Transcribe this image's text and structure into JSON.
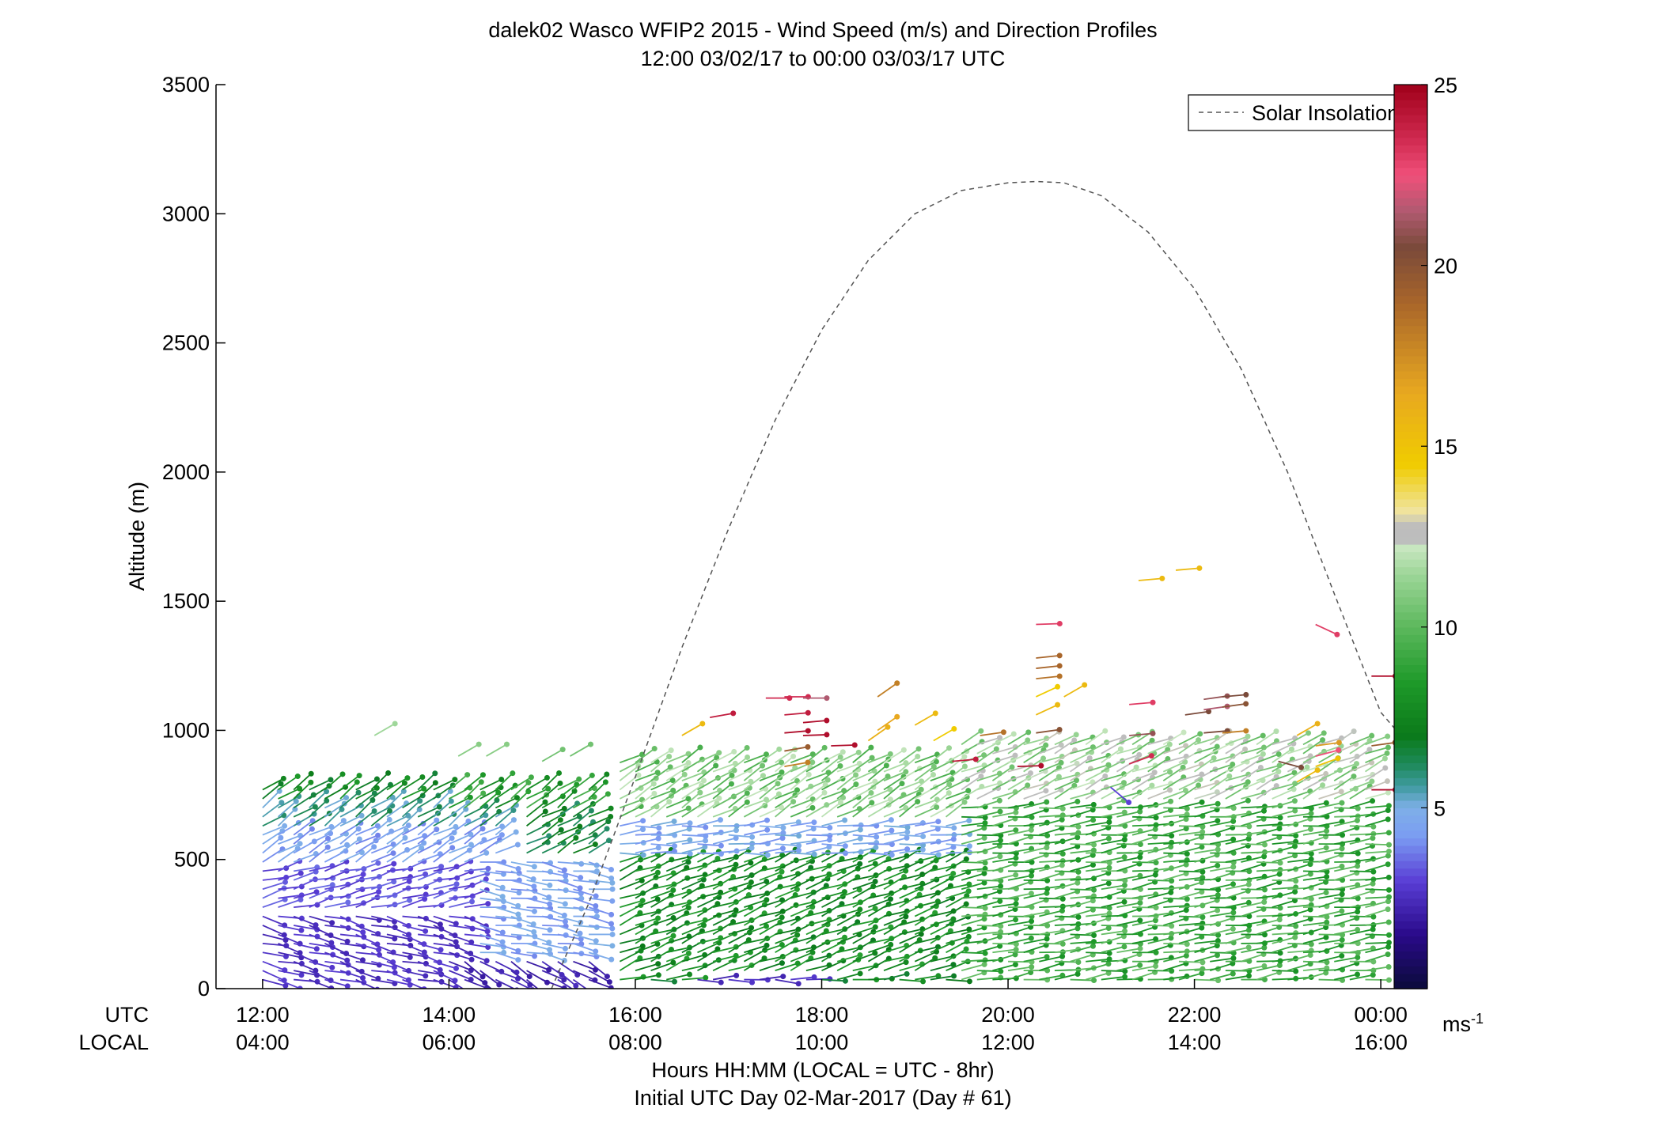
{
  "chart_data": {
    "type": "scatter",
    "title": "dalek02 Wasco WFIP2 2015 - Wind Speed (m/s) and Direction Profiles",
    "subtitle": "12:00 03/02/17 to 00:00 03/03/17  UTC",
    "ylabel": "Altitude (m)",
    "xlabel": "Hours HH:MM  (LOCAL = UTC - 8hr)",
    "xlabel2": "Initial UTC Day 02-Mar-2017 (Day # 61)",
    "row_label_utc": "UTC",
    "row_label_local": "LOCAL",
    "xlim": [
      -0.5,
      12.5
    ],
    "ylim": [
      0,
      3500
    ],
    "xticks_utc": [
      {
        "x": 0,
        "label": "12:00"
      },
      {
        "x": 2,
        "label": "14:00"
      },
      {
        "x": 4,
        "label": "16:00"
      },
      {
        "x": 6,
        "label": "18:00"
      },
      {
        "x": 8,
        "label": "20:00"
      },
      {
        "x": 10,
        "label": "22:00"
      },
      {
        "x": 12,
        "label": "00:00"
      }
    ],
    "xticks_local": [
      "04:00",
      "06:00",
      "08:00",
      "10:00",
      "12:00",
      "14:00",
      "16:00"
    ],
    "yticks": [
      {
        "y": 0,
        "label": "0"
      },
      {
        "y": 500,
        "label": "500"
      },
      {
        "y": 1000,
        "label": "1000"
      },
      {
        "y": 1500,
        "label": "1500"
      },
      {
        "y": 2000,
        "label": "2000"
      },
      {
        "y": 2500,
        "label": "2500"
      },
      {
        "y": 3000,
        "label": "3000"
      },
      {
        "y": 3500,
        "label": "3500"
      }
    ],
    "legend": {
      "entry": "Solar Insolation",
      "position": "top-right",
      "style": "dashed",
      "color": "#555555"
    },
    "solar_insolation": {
      "x": [
        3.1,
        3.5,
        4.0,
        4.5,
        5.0,
        5.5,
        6.0,
        6.5,
        7.0,
        7.5,
        8.0,
        8.3,
        8.6,
        9.0,
        9.5,
        10.0,
        10.5,
        11.0,
        11.5,
        12.0,
        12.5
      ],
      "y": [
        0,
        330,
        820,
        1320,
        1780,
        2200,
        2550,
        2820,
        3000,
        3090,
        3120,
        3125,
        3120,
        3070,
        2930,
        2710,
        2400,
        2000,
        1530,
        1070,
        860
      ]
    },
    "colorbar": {
      "min": 0,
      "max": 25,
      "ticks": [
        5,
        10,
        15,
        20,
        25
      ],
      "unit_label": "ms",
      "unit_exponent": "-1",
      "stops": [
        {
          "v": 0,
          "c": "#0b0b3a"
        },
        {
          "v": 1.5,
          "c": "#2a0a8a"
        },
        {
          "v": 3,
          "c": "#5a3fd6"
        },
        {
          "v": 4.2,
          "c": "#7b9cf2"
        },
        {
          "v": 5,
          "c": "#7fb0e8"
        },
        {
          "v": 5.6,
          "c": "#3f9aa0"
        },
        {
          "v": 6.2,
          "c": "#1e8a5a"
        },
        {
          "v": 7,
          "c": "#0b7a1a"
        },
        {
          "v": 8.5,
          "c": "#1f9a2a"
        },
        {
          "v": 10,
          "c": "#5cb85c"
        },
        {
          "v": 11.5,
          "c": "#9fd79a"
        },
        {
          "v": 12.2,
          "c": "#c8e6c0"
        },
        {
          "v": 12.4,
          "c": "#bdbdbd"
        },
        {
          "v": 12.8,
          "c": "#bdbdbd"
        },
        {
          "v": 13.2,
          "c": "#f0e4a0"
        },
        {
          "v": 14.5,
          "c": "#f0cc00"
        },
        {
          "v": 16.5,
          "c": "#e8a820"
        },
        {
          "v": 19,
          "c": "#a8652a"
        },
        {
          "v": 20.5,
          "c": "#7a4a3a"
        },
        {
          "v": 21.5,
          "c": "#b05a70"
        },
        {
          "v": 22.5,
          "c": "#f0507a"
        },
        {
          "v": 23.5,
          "c": "#d02a50"
        },
        {
          "v": 25,
          "c": "#a0001a"
        }
      ]
    },
    "regimes": [
      {
        "x0": 0,
        "x1": 2.6,
        "h0": 0,
        "h1": 300,
        "speed": 2.6,
        "dir": 285
      },
      {
        "x0": 0,
        "x1": 2.6,
        "h0": 300,
        "h1": 470,
        "speed": 3.2,
        "dir": 255
      },
      {
        "x0": 0,
        "x1": 2.6,
        "h0": 470,
        "h1": 600,
        "speed": 4.4,
        "dir": 240
      },
      {
        "x0": 0,
        "x1": 2.6,
        "h0": 600,
        "h1": 720,
        "speed": 5.8,
        "dir": 235
      },
      {
        "x0": 0,
        "x1": 2.6,
        "h0": 720,
        "h1": 800,
        "speed": 7.5,
        "dir": 235
      },
      {
        "x0": 2.0,
        "x1": 3.6,
        "h0": 0,
        "h1": 120,
        "speed": 2.2,
        "dir": 300
      },
      {
        "x0": 2.3,
        "x1": 3.6,
        "h0": 120,
        "h1": 500,
        "speed": 4.5,
        "dir": 280
      },
      {
        "x0": 2.7,
        "x1": 3.6,
        "h0": 500,
        "h1": 700,
        "speed": 6.8,
        "dir": 240
      },
      {
        "x0": 2.0,
        "x1": 3.6,
        "h0": 700,
        "h1": 800,
        "speed": 8.5,
        "dir": 235
      },
      {
        "x0": 3.7,
        "x1": 7.4,
        "h0": 0,
        "h1": 60,
        "speed": 7.5,
        "dir": 265
      },
      {
        "x0": 4.6,
        "x1": 6.0,
        "h0": 20,
        "h1": 80,
        "speed": 2.5,
        "dir": 270
      },
      {
        "x0": 3.7,
        "x1": 7.4,
        "h0": 60,
        "h1": 520,
        "speed": 7.8,
        "dir": 248
      },
      {
        "x0": 3.7,
        "x1": 7.4,
        "h0": 520,
        "h1": 660,
        "speed": 4.6,
        "dir": 265
      },
      {
        "x0": 3.7,
        "x1": 7.4,
        "h0": 660,
        "h1": 900,
        "speed": 10.8,
        "dir": 240
      },
      {
        "x0": 7.5,
        "x1": 12.0,
        "h0": 0,
        "h1": 720,
        "speed": 9.2,
        "dir": 262
      },
      {
        "x0": 7.5,
        "x1": 12.0,
        "h0": 720,
        "h1": 960,
        "speed": 11.5,
        "dir": 245
      }
    ],
    "upper_points": [
      {
        "x": 1.2,
        "y": 980,
        "speed": 11.5,
        "dir": 240
      },
      {
        "x": 2.1,
        "y": 900,
        "speed": 11.0,
        "dir": 240
      },
      {
        "x": 2.4,
        "y": 900,
        "speed": 11.0,
        "dir": 240
      },
      {
        "x": 3.0,
        "y": 880,
        "speed": 10.5,
        "dir": 240
      },
      {
        "x": 3.3,
        "y": 900,
        "speed": 10.5,
        "dir": 240
      },
      {
        "x": 4.5,
        "y": 980,
        "speed": 15.5,
        "dir": 240
      },
      {
        "x": 4.8,
        "y": 1050,
        "speed": 24.0,
        "dir": 260
      },
      {
        "x": 5.4,
        "y": 1125,
        "speed": 23.5,
        "dir": 270
      },
      {
        "x": 5.6,
        "y": 1130,
        "speed": 23.5,
        "dir": 270
      },
      {
        "x": 5.8,
        "y": 1125,
        "speed": 21.5,
        "dir": 270
      },
      {
        "x": 5.6,
        "y": 1060,
        "speed": 24.0,
        "dir": 265
      },
      {
        "x": 5.8,
        "y": 1030,
        "speed": 24.5,
        "dir": 265
      },
      {
        "x": 5.6,
        "y": 990,
        "speed": 24.5,
        "dir": 265
      },
      {
        "x": 5.8,
        "y": 980,
        "speed": 24.5,
        "dir": 268
      },
      {
        "x": 5.6,
        "y": 920,
        "speed": 19.5,
        "dir": 260
      },
      {
        "x": 5.6,
        "y": 860,
        "speed": 18.0,
        "dir": 260
      },
      {
        "x": 6.1,
        "y": 940,
        "speed": 24.5,
        "dir": 268
      },
      {
        "x": 6.5,
        "y": 960,
        "speed": 16.0,
        "dir": 235
      },
      {
        "x": 6.6,
        "y": 1000,
        "speed": 16.5,
        "dir": 235
      },
      {
        "x": 6.6,
        "y": 1130,
        "speed": 18.0,
        "dir": 235
      },
      {
        "x": 7.0,
        "y": 1020,
        "speed": 15.5,
        "dir": 240
      },
      {
        "x": 7.2,
        "y": 960,
        "speed": 14.5,
        "dir": 240
      },
      {
        "x": 7.4,
        "y": 880,
        "speed": 24.0,
        "dir": 265
      },
      {
        "x": 7.7,
        "y": 980,
        "speed": 18.5,
        "dir": 262
      },
      {
        "x": 8.1,
        "y": 860,
        "speed": 24.5,
        "dir": 268
      },
      {
        "x": 8.3,
        "y": 1410,
        "speed": 23.0,
        "dir": 268
      },
      {
        "x": 8.3,
        "y": 1280,
        "speed": 19.0,
        "dir": 264
      },
      {
        "x": 8.3,
        "y": 1240,
        "speed": 19.0,
        "dir": 264
      },
      {
        "x": 8.3,
        "y": 1200,
        "speed": 18.5,
        "dir": 264
      },
      {
        "x": 8.3,
        "y": 1130,
        "speed": 14.5,
        "dir": 245
      },
      {
        "x": 8.3,
        "y": 1060,
        "speed": 15.5,
        "dir": 245
      },
      {
        "x": 8.3,
        "y": 990,
        "speed": 20.0,
        "dir": 262
      },
      {
        "x": 8.6,
        "y": 1130,
        "speed": 15.5,
        "dir": 240
      },
      {
        "x": 9.1,
        "y": 780,
        "speed": 3.0,
        "dir": 310
      },
      {
        "x": 9.3,
        "y": 1100,
        "speed": 23.0,
        "dir": 265
      },
      {
        "x": 9.3,
        "y": 980,
        "speed": 21.0,
        "dir": 265
      },
      {
        "x": 9.3,
        "y": 870,
        "speed": 23.5,
        "dir": 250
      },
      {
        "x": 9.4,
        "y": 1580,
        "speed": 15.5,
        "dir": 265
      },
      {
        "x": 9.8,
        "y": 1620,
        "speed": 15.5,
        "dir": 265
      },
      {
        "x": 9.9,
        "y": 1060,
        "speed": 20.5,
        "dir": 262
      },
      {
        "x": 10.1,
        "y": 1120,
        "speed": 21.0,
        "dir": 262
      },
      {
        "x": 10.3,
        "y": 1130,
        "speed": 20.5,
        "dir": 265
      },
      {
        "x": 10.1,
        "y": 1080,
        "speed": 21.5,
        "dir": 262
      },
      {
        "x": 10.3,
        "y": 1090,
        "speed": 20.0,
        "dir": 262
      },
      {
        "x": 10.1,
        "y": 990,
        "speed": 20.5,
        "dir": 265
      },
      {
        "x": 10.3,
        "y": 990,
        "speed": 18.0,
        "dir": 265
      },
      {
        "x": 11.3,
        "y": 1410,
        "speed": 23.0,
        "dir": 295
      },
      {
        "x": 11.9,
        "y": 1210,
        "speed": 24.5,
        "dir": 270
      },
      {
        "x": 11.9,
        "y": 940,
        "speed": 19.5,
        "dir": 262
      },
      {
        "x": 11.1,
        "y": 980,
        "speed": 16.0,
        "dir": 240
      },
      {
        "x": 11.3,
        "y": 940,
        "speed": 17.0,
        "dir": 262
      },
      {
        "x": 11.3,
        "y": 900,
        "speed": 22.5,
        "dir": 255
      },
      {
        "x": 11.3,
        "y": 860,
        "speed": 15.0,
        "dir": 250
      },
      {
        "x": 11.1,
        "y": 800,
        "speed": 15.5,
        "dir": 240
      },
      {
        "x": 11.9,
        "y": 770,
        "speed": 24.5,
        "dir": 270
      },
      {
        "x": 10.9,
        "y": 880,
        "speed": 20.5,
        "dir": 285
      }
    ]
  }
}
